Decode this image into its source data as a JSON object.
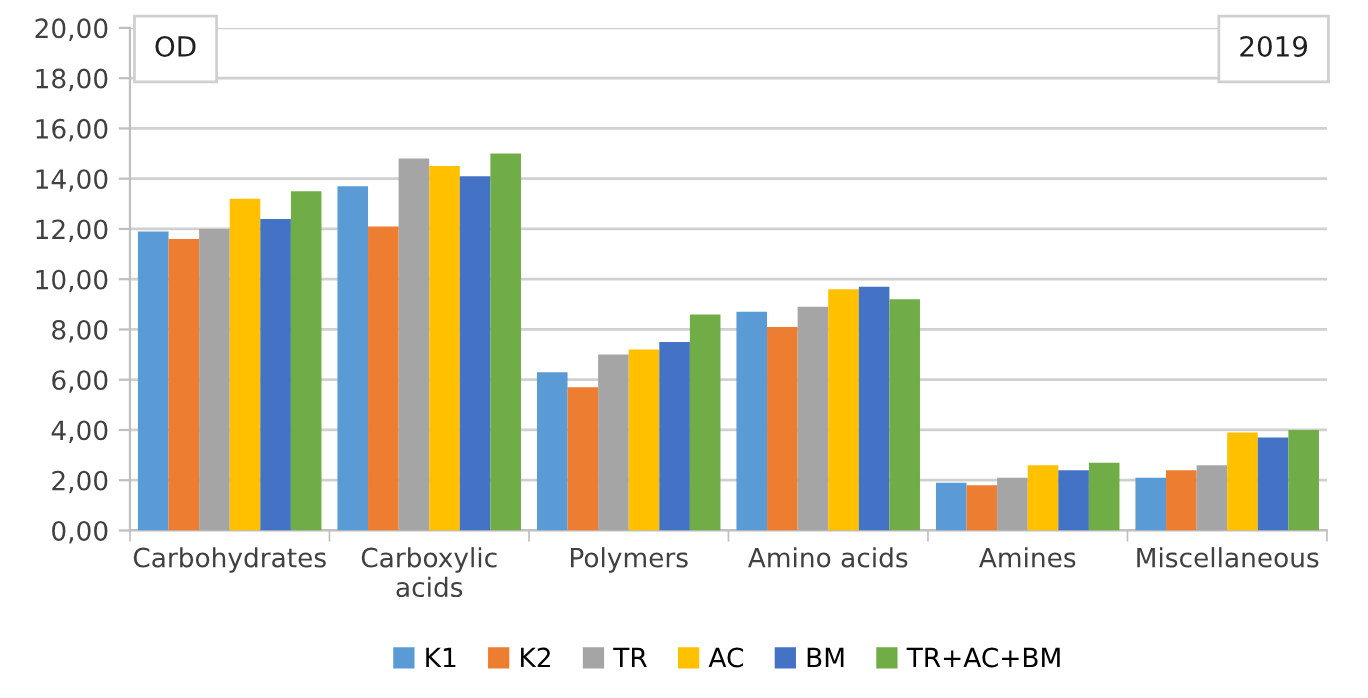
{
  "chart_data": {
    "type": "bar",
    "categories": [
      "Carbohydrates",
      "Carboxylic\nacids",
      "Polymers",
      "Amino acids",
      "Amines",
      "Miscellaneous"
    ],
    "series": [
      {
        "name": "K1",
        "color": "#5b9bd5",
        "values": [
          11.9,
          13.7,
          6.3,
          8.7,
          1.9,
          2.1
        ]
      },
      {
        "name": "K2",
        "color": "#ed7d31",
        "values": [
          11.6,
          12.1,
          5.7,
          8.1,
          1.8,
          2.4
        ]
      },
      {
        "name": "TR",
        "color": "#a5a5a5",
        "values": [
          12.0,
          14.8,
          7.0,
          8.9,
          2.1,
          2.6
        ]
      },
      {
        "name": "AC",
        "color": "#ffc000",
        "values": [
          13.2,
          14.5,
          7.2,
          9.6,
          2.6,
          3.9
        ]
      },
      {
        "name": "BM",
        "color": "#4472c4",
        "values": [
          12.4,
          14.1,
          7.5,
          9.7,
          2.4,
          3.7
        ]
      },
      {
        "name": "TR+AC+BM",
        "color": "#70ad47",
        "values": [
          13.5,
          15.0,
          8.6,
          9.2,
          2.7,
          4.0
        ]
      }
    ],
    "ylim": [
      0,
      20
    ],
    "yticks": [
      {
        "value": 0,
        "label": "0,00"
      },
      {
        "value": 2,
        "label": "2,00"
      },
      {
        "value": 4,
        "label": "4,00"
      },
      {
        "value": 6,
        "label": "6,00"
      },
      {
        "value": 8,
        "label": "8,00"
      },
      {
        "value": 10,
        "label": "10,00"
      },
      {
        "value": 12,
        "label": "12,00"
      },
      {
        "value": 14,
        "label": "14,00"
      },
      {
        "value": 16,
        "label": "16,00"
      },
      {
        "value": 18,
        "label": "18,00"
      },
      {
        "value": 20,
        "label": "20,00"
      }
    ],
    "grid": "y",
    "legend": "bottom",
    "annotations": [
      "OD",
      "2019"
    ]
  }
}
